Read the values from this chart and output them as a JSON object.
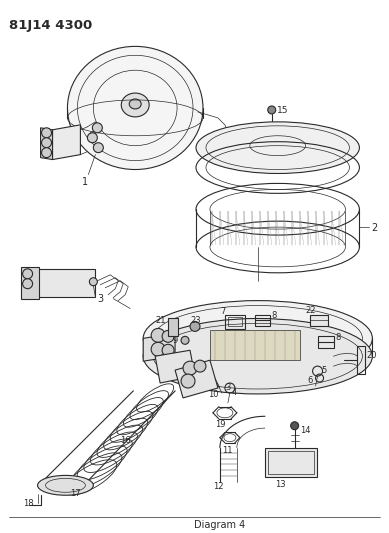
{
  "title": "81J14 4300",
  "bg_color": "#ffffff",
  "line_color": "#2a2a2a",
  "fig_width": 3.89,
  "fig_height": 5.33,
  "dpi": 100
}
